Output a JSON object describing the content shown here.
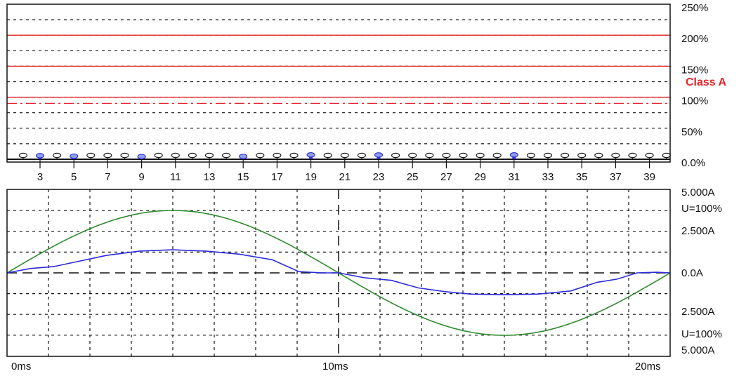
{
  "colors": {
    "limit": "#e8252a",
    "blue": "#2b2bd9",
    "green": "#2e8b2e",
    "grid": "#111111"
  },
  "chart_data": [
    {
      "type": "bar",
      "harmonics": [
        2,
        3,
        4,
        5,
        6,
        7,
        8,
        9,
        10,
        11,
        12,
        13,
        14,
        15,
        16,
        17,
        18,
        19,
        20,
        21,
        22,
        23,
        24,
        25,
        26,
        27,
        28,
        29,
        30,
        31,
        32,
        33,
        34,
        35,
        36,
        37,
        38,
        39,
        40
      ],
      "values": [
        0,
        2.4,
        0,
        1.6,
        0,
        0,
        0,
        0.9,
        0,
        0,
        0,
        0,
        0,
        1.2,
        0,
        0,
        0,
        3.7,
        0,
        0,
        0,
        3.5,
        0,
        0,
        0,
        0,
        0,
        0,
        0,
        3.7,
        0,
        0,
        0,
        0,
        0,
        0,
        0,
        0,
        0
      ],
      "tick_labels": [
        "3",
        "5",
        "7",
        "9",
        "11",
        "13",
        "15",
        "17",
        "19",
        "21",
        "23",
        "25",
        "27",
        "29",
        "31",
        "33",
        "35",
        "37",
        "39"
      ],
      "ytick_labels": [
        "250%",
        "200%",
        "150%",
        "100%",
        "50%",
        "0.0%"
      ],
      "ylim": [
        0,
        250
      ],
      "limit_lines": [
        200,
        150,
        100
      ],
      "dashdot_limit": 90,
      "limit_label": "Class A"
    },
    {
      "type": "line",
      "x_labels": [
        "0ms",
        "10ms",
        "20ms"
      ],
      "xlim": [
        0,
        20
      ],
      "ylim": [
        -5,
        5
      ],
      "y_labels": {
        "top": "5.000A",
        "top_u": "U=100%",
        "upper": "2.500A",
        "zero": "0.0A",
        "lower": "2.500A",
        "bottom_u": "U=100%",
        "bottom": "5.000A"
      },
      "series": [
        {
          "values_desc": "voltage",
          "t": [
            0,
            1,
            2,
            3,
            4,
            5,
            6,
            7,
            8,
            9,
            10,
            11,
            12,
            13,
            14,
            15,
            16,
            17,
            18,
            19,
            20
          ],
          "v": [
            0,
            1.55,
            2.94,
            4.05,
            4.76,
            5.0,
            4.76,
            4.05,
            2.94,
            1.55,
            0,
            -1.55,
            -2.94,
            -4.05,
            -4.76,
            -5.0,
            -4.76,
            -4.05,
            -2.94,
            -1.55,
            0
          ]
        },
        {
          "values_desc": "current",
          "t": [
            0,
            0.7,
            1.4,
            2.2,
            3,
            4,
            5,
            6,
            7,
            8,
            8.8,
            9.5,
            10,
            10.8,
            11.6,
            12.4,
            13.2,
            14,
            15,
            16,
            17,
            17.8,
            18.4,
            19,
            19.6,
            20
          ],
          "v": [
            0,
            0.35,
            0.5,
            0.95,
            1.4,
            1.75,
            1.85,
            1.75,
            1.5,
            1.05,
            0.1,
            0,
            0,
            -0.4,
            -0.6,
            -1.2,
            -1.5,
            -1.7,
            -1.75,
            -1.7,
            -1.45,
            -0.75,
            -0.5,
            0,
            0.05,
            0
          ]
        }
      ]
    }
  ]
}
